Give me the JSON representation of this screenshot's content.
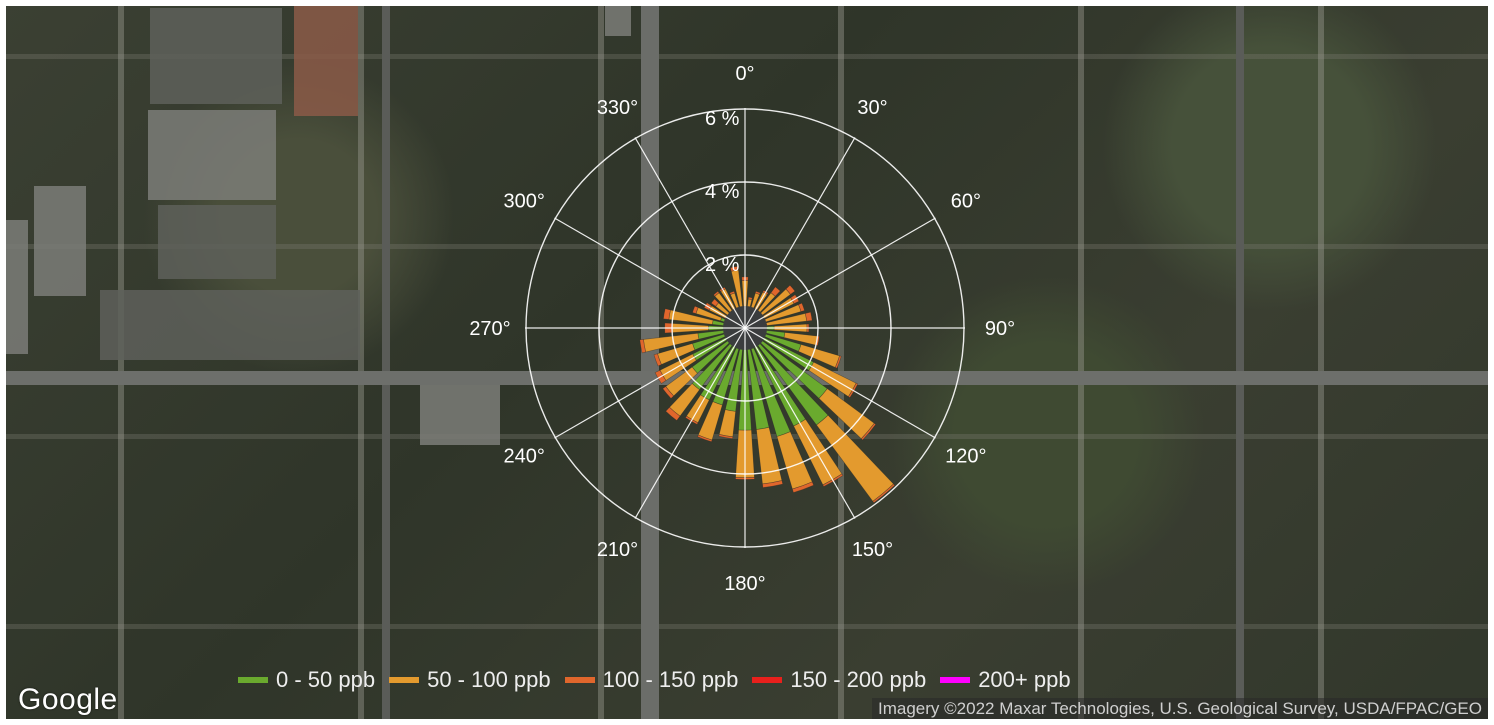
{
  "map": {
    "logo": "Google",
    "attribution": "Imagery ©2022 Maxar Technologies, U.S. Geological Survey, USDA/FPAC/GEO"
  },
  "rose": {
    "direction_labels": [
      "0°",
      "30°",
      "60°",
      "90°",
      "120°",
      "150°",
      "180°",
      "210°",
      "240°",
      "270°",
      "300°",
      "330°"
    ],
    "radial_labels": [
      "2 %",
      "4 %",
      "6 %"
    ],
    "radial_max_percent": 8
  },
  "chart_data": {
    "type": "wind_rose",
    "bin_width_deg": 10,
    "colors": {
      "0 - 50 ppb": "#6aaa2e",
      "50 - 100 ppb": "#e39a2e",
      "100 - 150 ppb": "#e0662c",
      "150 - 200 ppb": "#e8201c",
      "200+ ppb": "#ff00ff"
    },
    "legend": [
      "0 - 50 ppb",
      "50 - 100 ppb",
      "100 - 150 ppb",
      "150 - 200 ppb",
      "200+ ppb"
    ],
    "directions": [
      0,
      10,
      20,
      30,
      40,
      50,
      60,
      70,
      80,
      90,
      100,
      110,
      120,
      130,
      140,
      150,
      160,
      170,
      180,
      190,
      200,
      210,
      220,
      230,
      240,
      250,
      260,
      270,
      280,
      290,
      300,
      310,
      320,
      330,
      340,
      350
    ],
    "series": [
      {
        "name": "0 - 50 ppb",
        "values": [
          0.2,
          0.2,
          0.2,
          0.2,
          0.2,
          0.25,
          0.3,
          0.4,
          0.6,
          0.8,
          1.1,
          1.6,
          2.1,
          2.8,
          3.3,
          3.0,
          3.1,
          2.8,
          2.8,
          2.3,
          2.2,
          2.2,
          2.1,
          1.8,
          1.6,
          1.5,
          1.3,
          1.0,
          0.9,
          0.7,
          0.5,
          0.4,
          0.4,
          0.3,
          0.3,
          0.3
        ]
      },
      {
        "name": "50 - 100 ppb",
        "values": [
          1.1,
          0.6,
          0.8,
          0.9,
          1.0,
          1.3,
          1.2,
          1.2,
          1.1,
          0.9,
          0.9,
          1.1,
          1.3,
          1.6,
          2.6,
          1.8,
          1.5,
          1.5,
          1.3,
          0.7,
          1.0,
          0.7,
          0.9,
          0.9,
          1.0,
          1.0,
          1.5,
          1.0,
          1.2,
          0.7,
          0.6,
          0.6,
          0.8,
          0.9,
          0.7,
          1.3
        ]
      },
      {
        "name": "100 - 150 ppb",
        "values": [
          0.1,
          0.05,
          0.05,
          0.05,
          0.2,
          0.15,
          0.15,
          0.1,
          0.15,
          0.05,
          0.05,
          0.05,
          0.05,
          0.05,
          0.05,
          0.05,
          0.1,
          0.1,
          0.05,
          0.05,
          0.05,
          0.05,
          0.15,
          0.1,
          0.15,
          0.1,
          0.1,
          0.2,
          0.15,
          0.1,
          0.15,
          0.15,
          0.05,
          0.05,
          0.05,
          0.1
        ]
      },
      {
        "name": "150 - 200 ppb",
        "values": [
          0,
          0,
          0,
          0,
          0,
          0,
          0,
          0,
          0,
          0,
          0,
          0,
          0,
          0,
          0,
          0,
          0,
          0,
          0,
          0,
          0,
          0,
          0,
          0,
          0,
          0,
          0,
          0,
          0,
          0,
          0,
          0,
          0,
          0,
          0,
          0
        ]
      },
      {
        "name": "200+ ppb",
        "values": [
          0,
          0,
          0,
          0,
          0,
          0,
          0,
          0,
          0,
          0,
          0,
          0,
          0,
          0,
          0,
          0,
          0,
          0,
          0,
          0,
          0,
          0,
          0,
          0,
          0,
          0,
          0,
          0,
          0,
          0,
          0,
          0,
          0,
          0,
          0,
          0
        ]
      }
    ]
  }
}
